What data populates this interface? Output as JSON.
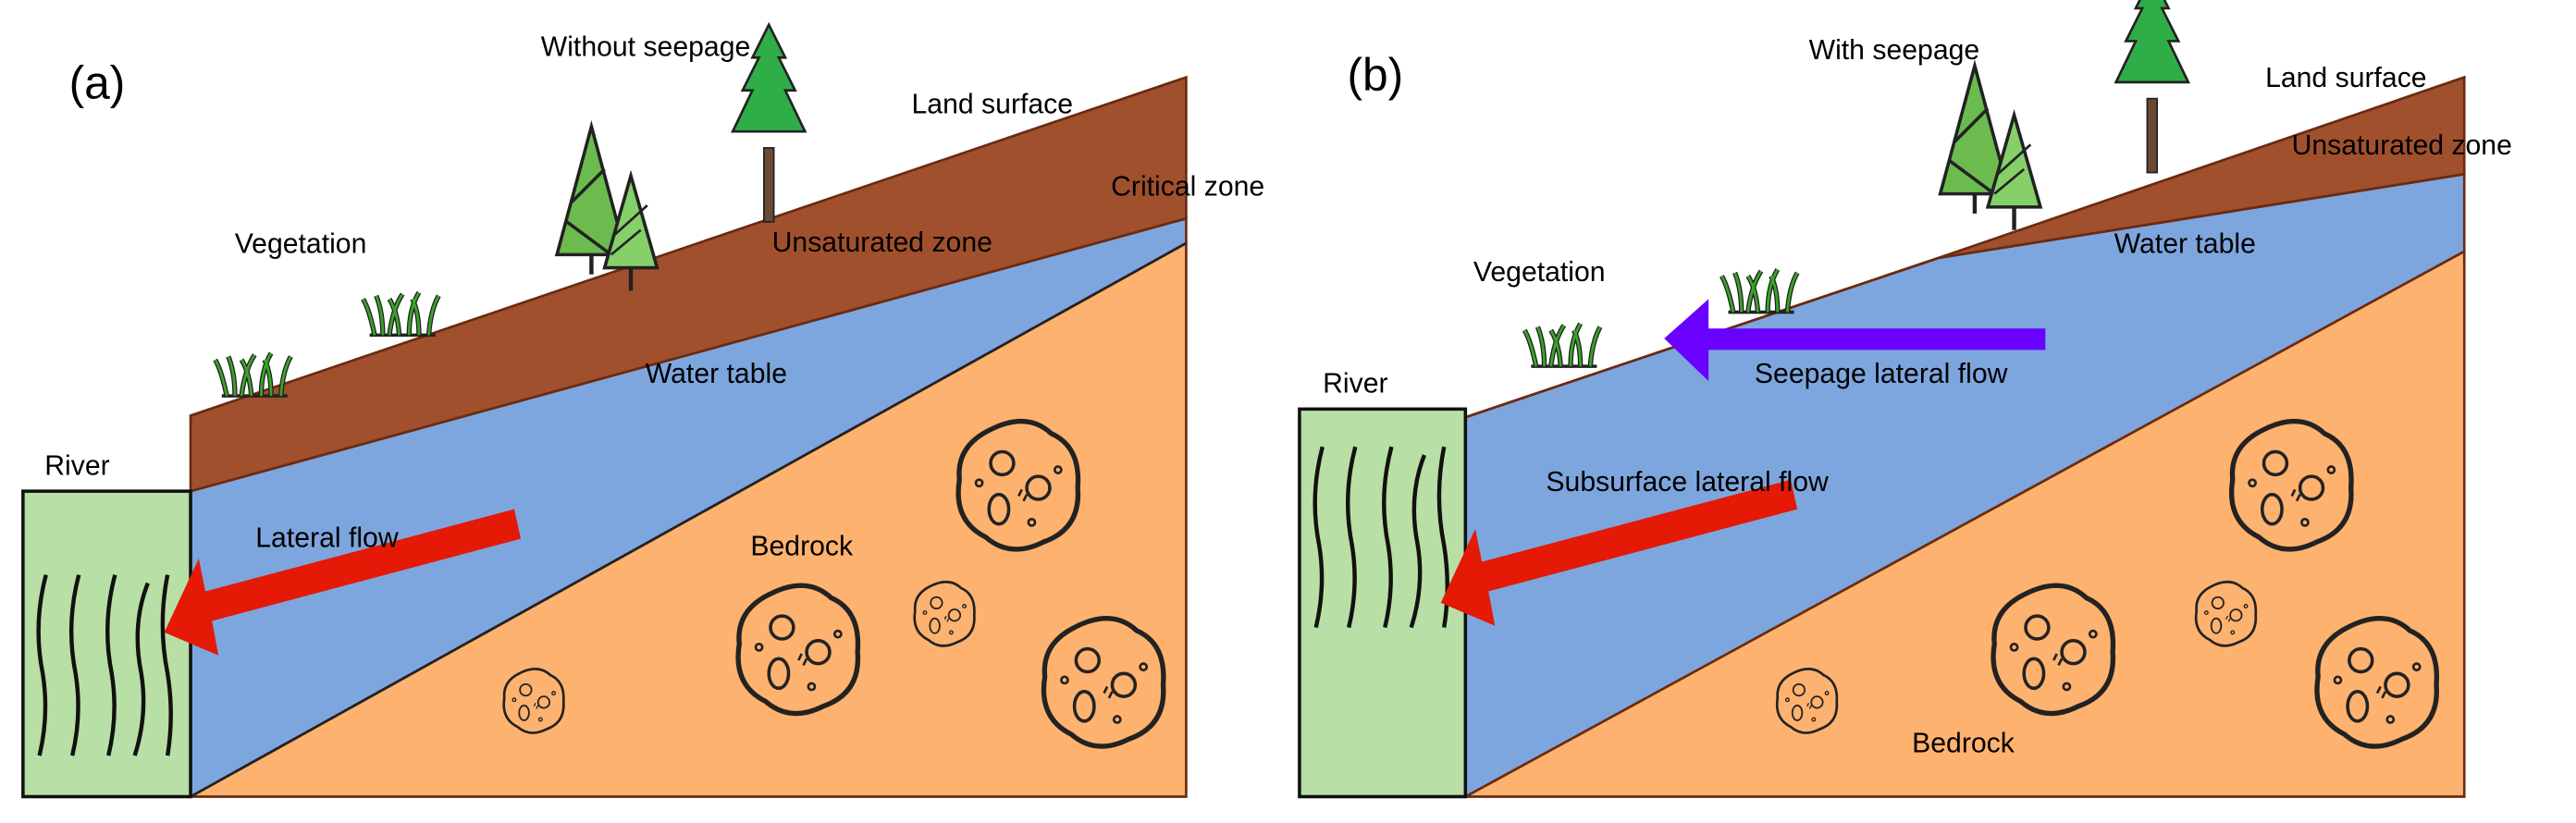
{
  "panel_a": {
    "label": "(a)",
    "title": "Without seepage",
    "land_surface": "Land surface",
    "critical_zone": "Critical zone",
    "vegetation": "Vegetation",
    "unsaturated_zone": "Unsaturated zone",
    "water_table": "Water table",
    "lateral_flow": "Lateral flow",
    "bedrock": "Bedrock",
    "river": "River"
  },
  "panel_b": {
    "label": "(b)",
    "title": "With seepage",
    "land_surface": "Land surface",
    "unsaturated_zone": "Unsaturated zone",
    "water_table": "Water table",
    "vegetation": "Vegetation",
    "seepage_flow": "Seepage lateral flow",
    "river": "River",
    "subsurface_flow": "Subsurface lateral flow",
    "bedrock": "Bedrock"
  },
  "colors": {
    "soil": "#a0502d",
    "water": "#7ea6de",
    "bedrock": "#fdb26f",
    "river": "#b8dfa6",
    "lateral_flow_arrow": "#e41a06",
    "seepage_arrow": "#6a00ff"
  }
}
